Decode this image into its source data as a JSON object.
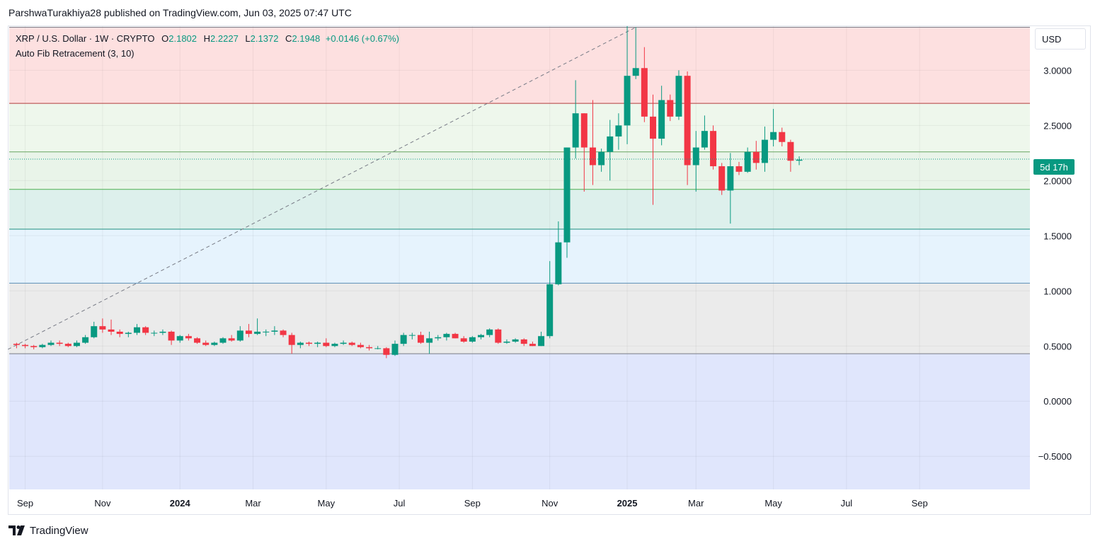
{
  "header": {
    "text": "ParshwaTurakhiya28 published on TradingView.com, Jun 03, 2025 07:47 UTC"
  },
  "legend": {
    "symbol": "XRP / U.S. Dollar · 1W · CRYPTO",
    "o_label": "O",
    "o_value": "2.1802",
    "h_label": "H",
    "h_value": "2.2227",
    "l_label": "L",
    "l_value": "2.1372",
    "c_label": "C",
    "c_value": "2.1948",
    "change": "+0.0146 (+0.67%)",
    "indicator": "Auto Fib Retracement (3, 10)"
  },
  "currency_button": "USD",
  "countdown": "5d 17h",
  "footer": {
    "brand": "TradingView"
  },
  "colors": {
    "up": "#089981",
    "down": "#f23645"
  },
  "chart_data": {
    "type": "candlestick",
    "ylim": [
      -0.8,
      3.4
    ],
    "y_ticks": [
      {
        "v": 3.0,
        "label": "3.0000"
      },
      {
        "v": 2.5,
        "label": "2.5000"
      },
      {
        "v": 2.0,
        "label": "2.0000"
      },
      {
        "v": 1.5,
        "label": "1.5000"
      },
      {
        "v": 1.0,
        "label": "1.0000"
      },
      {
        "v": 0.5,
        "label": "0.5000"
      },
      {
        "v": 0.0,
        "label": "0.0000"
      },
      {
        "v": -0.5,
        "label": "−0.5000"
      }
    ],
    "x_ticks": [
      {
        "week": 1,
        "label": "Sep",
        "bold": false
      },
      {
        "week": 10,
        "label": "Nov",
        "bold": false
      },
      {
        "week": 19,
        "label": "2024",
        "bold": true
      },
      {
        "week": 27.5,
        "label": "Mar",
        "bold": false
      },
      {
        "week": 36,
        "label": "May",
        "bold": false
      },
      {
        "week": 44.5,
        "label": "Jul",
        "bold": false
      },
      {
        "week": 53,
        "label": "Sep",
        "bold": false
      },
      {
        "week": 62,
        "label": "Nov",
        "bold": false
      },
      {
        "week": 71,
        "label": "2025",
        "bold": true
      },
      {
        "week": 79,
        "label": "Mar",
        "bold": false
      },
      {
        "week": 88,
        "label": "May",
        "bold": false
      },
      {
        "week": 96.5,
        "label": "Jul",
        "bold": false
      },
      {
        "week": 105,
        "label": "Sep",
        "bold": false
      }
    ],
    "fib_levels": [
      3.39,
      2.7,
      2.26,
      1.92,
      1.56,
      1.07,
      0.43
    ],
    "fib_zones": [
      {
        "from": 3.39,
        "to": 2.7,
        "color": "#fde0e0"
      },
      {
        "from": 2.7,
        "to": 2.26,
        "color": "#eef7ec"
      },
      {
        "from": 2.26,
        "to": 1.92,
        "color": "#e9f4e9"
      },
      {
        "from": 1.92,
        "to": 1.56,
        "color": "#ddf0ec"
      },
      {
        "from": 1.56,
        "to": 1.07,
        "color": "#e6f3fd"
      },
      {
        "from": 1.07,
        "to": 0.43,
        "color": "#ebebeb"
      },
      {
        "from": 0.43,
        "to": -0.8,
        "color": "#e0e6fc"
      }
    ],
    "fib_line_colors": [
      "#787b86",
      "#b23c3c",
      "#66a35e",
      "#4caf50",
      "#1e8f7e",
      "#5b8fb5",
      "#787b86"
    ],
    "trend_line": {
      "from": [
        -1,
        0.47
      ],
      "to": [
        72,
        3.39
      ]
    },
    "last_price": 2.1948,
    "candles": [
      [
        0.52,
        0.53,
        0.48,
        0.51
      ],
      [
        0.51,
        0.52,
        0.48,
        0.5
      ],
      [
        0.5,
        0.51,
        0.47,
        0.49
      ],
      [
        0.49,
        0.52,
        0.48,
        0.51
      ],
      [
        0.51,
        0.55,
        0.5,
        0.53
      ],
      [
        0.53,
        0.55,
        0.5,
        0.52
      ],
      [
        0.52,
        0.53,
        0.49,
        0.5
      ],
      [
        0.5,
        0.55,
        0.49,
        0.53
      ],
      [
        0.53,
        0.6,
        0.52,
        0.58
      ],
      [
        0.58,
        0.72,
        0.57,
        0.68
      ],
      [
        0.68,
        0.75,
        0.62,
        0.65
      ],
      [
        0.65,
        0.74,
        0.6,
        0.63
      ],
      [
        0.63,
        0.65,
        0.58,
        0.61
      ],
      [
        0.61,
        0.63,
        0.58,
        0.62
      ],
      [
        0.62,
        0.7,
        0.6,
        0.67
      ],
      [
        0.67,
        0.68,
        0.6,
        0.62
      ],
      [
        0.62,
        0.64,
        0.59,
        0.62
      ],
      [
        0.62,
        0.65,
        0.6,
        0.63
      ],
      [
        0.63,
        0.64,
        0.51,
        0.55
      ],
      [
        0.55,
        0.6,
        0.53,
        0.59
      ],
      [
        0.59,
        0.61,
        0.55,
        0.57
      ],
      [
        0.57,
        0.58,
        0.52,
        0.53
      ],
      [
        0.53,
        0.55,
        0.5,
        0.51
      ],
      [
        0.51,
        0.54,
        0.5,
        0.53
      ],
      [
        0.53,
        0.58,
        0.52,
        0.57
      ],
      [
        0.57,
        0.6,
        0.54,
        0.55
      ],
      [
        0.55,
        0.68,
        0.54,
        0.64
      ],
      [
        0.64,
        0.7,
        0.58,
        0.61
      ],
      [
        0.61,
        0.75,
        0.6,
        0.63
      ],
      [
        0.63,
        0.65,
        0.59,
        0.63
      ],
      [
        0.63,
        0.68,
        0.6,
        0.64
      ],
      [
        0.64,
        0.65,
        0.58,
        0.6
      ],
      [
        0.6,
        0.62,
        0.43,
        0.51
      ],
      [
        0.51,
        0.54,
        0.48,
        0.53
      ],
      [
        0.53,
        0.54,
        0.5,
        0.52
      ],
      [
        0.52,
        0.54,
        0.49,
        0.53
      ],
      [
        0.53,
        0.57,
        0.49,
        0.5
      ],
      [
        0.5,
        0.53,
        0.49,
        0.52
      ],
      [
        0.52,
        0.55,
        0.51,
        0.53
      ],
      [
        0.53,
        0.54,
        0.5,
        0.51
      ],
      [
        0.51,
        0.53,
        0.48,
        0.49
      ],
      [
        0.49,
        0.51,
        0.46,
        0.48
      ],
      [
        0.48,
        0.5,
        0.47,
        0.48
      ],
      [
        0.48,
        0.49,
        0.39,
        0.42
      ],
      [
        0.42,
        0.55,
        0.41,
        0.52
      ],
      [
        0.52,
        0.62,
        0.5,
        0.6
      ],
      [
        0.6,
        0.62,
        0.56,
        0.6
      ],
      [
        0.6,
        0.63,
        0.52,
        0.53
      ],
      [
        0.53,
        0.63,
        0.43,
        0.57
      ],
      [
        0.57,
        0.6,
        0.55,
        0.58
      ],
      [
        0.58,
        0.62,
        0.55,
        0.61
      ],
      [
        0.61,
        0.62,
        0.57,
        0.57
      ],
      [
        0.57,
        0.59,
        0.53,
        0.54
      ],
      [
        0.54,
        0.59,
        0.53,
        0.58
      ],
      [
        0.58,
        0.61,
        0.56,
        0.6
      ],
      [
        0.6,
        0.66,
        0.58,
        0.65
      ],
      [
        0.65,
        0.66,
        0.52,
        0.53
      ],
      [
        0.53,
        0.56,
        0.52,
        0.54
      ],
      [
        0.54,
        0.57,
        0.53,
        0.56
      ],
      [
        0.56,
        0.57,
        0.5,
        0.52
      ],
      [
        0.52,
        0.54,
        0.5,
        0.5
      ],
      [
        0.5,
        0.63,
        0.5,
        0.59
      ],
      [
        0.59,
        1.27,
        0.57,
        1.06
      ],
      [
        1.06,
        1.63,
        1.05,
        1.44
      ],
      [
        1.44,
        2.3,
        1.3,
        2.3
      ],
      [
        2.3,
        2.91,
        2.2,
        2.61
      ],
      [
        2.61,
        2.61,
        1.9,
        2.3
      ],
      [
        2.3,
        2.73,
        1.96,
        2.14
      ],
      [
        2.14,
        2.29,
        2.08,
        2.26
      ],
      [
        2.26,
        2.55,
        2.0,
        2.4
      ],
      [
        2.4,
        2.61,
        2.28,
        2.5
      ],
      [
        2.5,
        3.4,
        2.33,
        2.95
      ],
      [
        2.95,
        3.39,
        2.92,
        3.02
      ],
      [
        3.02,
        3.21,
        2.53,
        2.58
      ],
      [
        2.58,
        2.78,
        1.78,
        2.38
      ],
      [
        2.38,
        2.86,
        2.32,
        2.73
      ],
      [
        2.73,
        2.78,
        2.54,
        2.58
      ],
      [
        2.58,
        3.0,
        2.55,
        2.95
      ],
      [
        2.95,
        2.99,
        1.96,
        2.14
      ],
      [
        2.14,
        2.45,
        1.9,
        2.3
      ],
      [
        2.3,
        2.59,
        2.28,
        2.45
      ],
      [
        2.45,
        2.5,
        2.1,
        2.13
      ],
      [
        2.13,
        2.16,
        1.87,
        1.91
      ],
      [
        1.91,
        2.25,
        1.61,
        2.13
      ],
      [
        2.13,
        2.17,
        2.05,
        2.08
      ],
      [
        2.08,
        2.3,
        2.07,
        2.26
      ],
      [
        2.26,
        2.36,
        2.1,
        2.16
      ],
      [
        2.16,
        2.49,
        2.08,
        2.37
      ],
      [
        2.37,
        2.65,
        2.31,
        2.44
      ],
      [
        2.44,
        2.48,
        2.31,
        2.35
      ],
      [
        2.35,
        2.37,
        2.08,
        2.18
      ],
      [
        2.18,
        2.22,
        2.14,
        2.19
      ]
    ]
  }
}
